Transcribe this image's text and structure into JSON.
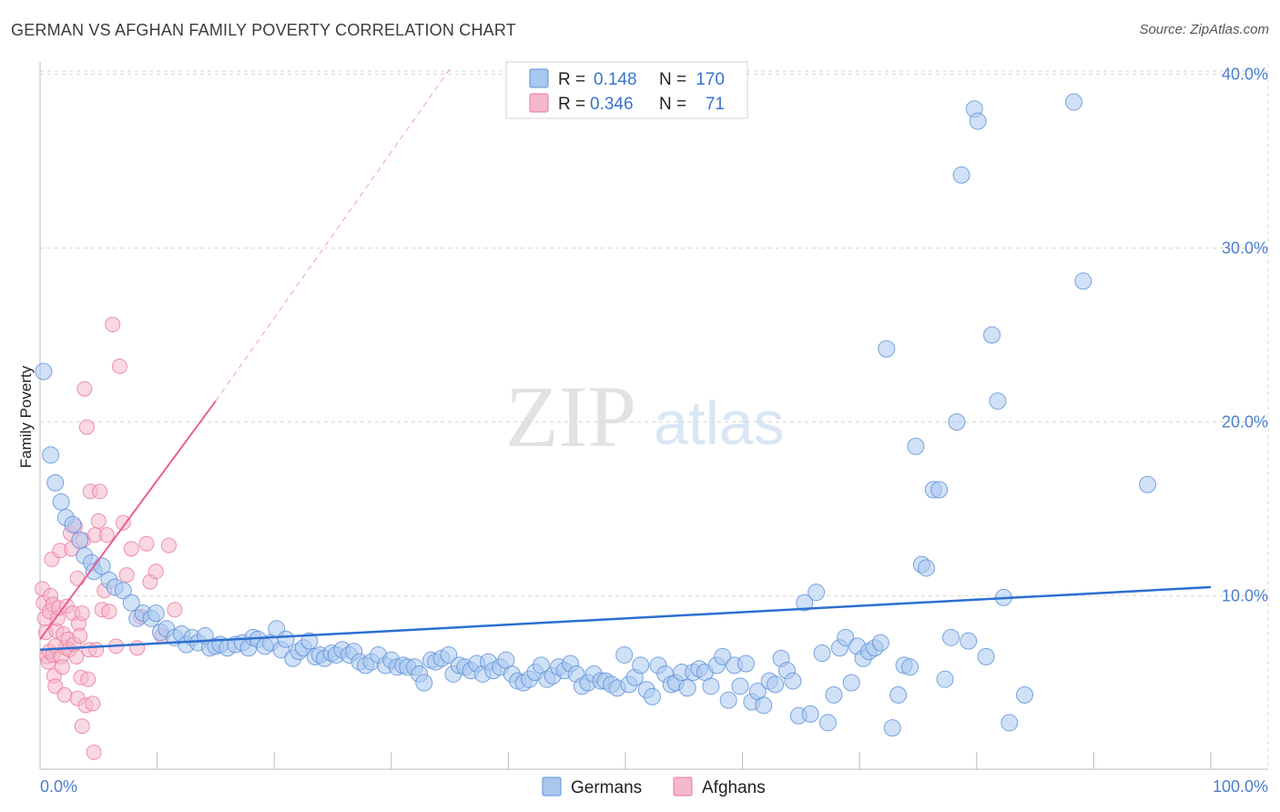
{
  "title": "GERMAN VS AFGHAN FAMILY POVERTY CORRELATION CHART",
  "source": "Source: ZipAtlas.com",
  "watermark": {
    "zip": "ZIP",
    "atlas": "atlas"
  },
  "colors": {
    "german_fill": "#a9c8f0",
    "german_stroke": "#5b8fd6",
    "german_line": "#2b6fd0",
    "afghan_fill": "#f6b8cb",
    "afghan_stroke": "#e8789c",
    "afghan_line": "#e8608e",
    "grid": "#d8d8d8",
    "tick_label": "#4a7fd0"
  },
  "legend": {
    "rows": [
      {
        "r_label": "R =",
        "r_value": "0.148",
        "n_label": "N =",
        "n_value": "170",
        "series": "german"
      },
      {
        "r_label": "R =",
        "r_value": "0.346",
        "n_label": "N =",
        "n_value": "71",
        "series": "afghan"
      }
    ]
  },
  "chart_data": {
    "type": "scatter",
    "title": "GERMAN VS AFGHAN FAMILY POVERTY CORRELATION CHART",
    "xlabel": "",
    "ylabel": "Family Poverty",
    "xlim": [
      0,
      100
    ],
    "ylim": [
      0,
      42
    ],
    "x_tick_labels": [
      "0.0%",
      "100.0%"
    ],
    "y_ticks": [
      10,
      20,
      30,
      40
    ],
    "y_tick_labels": [
      "10.0%",
      "20.0%",
      "30.0%",
      "40.0%"
    ],
    "grid": true,
    "legend_placement": "top-center",
    "series": [
      {
        "name": "Germans",
        "key": "german",
        "trend": {
          "x0": 0,
          "y0": 6.9,
          "x1": 100,
          "y1": 10.5
        },
        "points": [
          [
            0.3,
            22.9
          ],
          [
            0.9,
            18.1
          ],
          [
            1.3,
            16.5
          ],
          [
            1.8,
            15.4
          ],
          [
            2.2,
            14.5
          ],
          [
            2.8,
            14.1
          ],
          [
            3.4,
            13.2
          ],
          [
            3.8,
            12.3
          ],
          [
            4.4,
            11.9
          ],
          [
            4.6,
            11.4
          ],
          [
            5.3,
            11.7
          ],
          [
            5.9,
            10.9
          ],
          [
            6.4,
            10.5
          ],
          [
            7.1,
            10.3
          ],
          [
            7.8,
            9.6
          ],
          [
            8.3,
            8.7
          ],
          [
            8.8,
            9.0
          ],
          [
            9.5,
            8.7
          ],
          [
            9.9,
            9.0
          ],
          [
            10.3,
            7.9
          ],
          [
            10.8,
            8.1
          ],
          [
            11.5,
            7.6
          ],
          [
            12.1,
            7.8
          ],
          [
            12.5,
            7.2
          ],
          [
            13.0,
            7.6
          ],
          [
            13.5,
            7.3
          ],
          [
            14.1,
            7.7
          ],
          [
            14.5,
            7.0
          ],
          [
            15.0,
            7.1
          ],
          [
            15.4,
            7.2
          ],
          [
            16.0,
            7.0
          ],
          [
            16.7,
            7.2
          ],
          [
            17.3,
            7.3
          ],
          [
            17.8,
            7.0
          ],
          [
            18.2,
            7.6
          ],
          [
            18.6,
            7.5
          ],
          [
            19.2,
            7.1
          ],
          [
            19.7,
            7.3
          ],
          [
            20.2,
            8.1
          ],
          [
            20.6,
            6.9
          ],
          [
            21.0,
            7.5
          ],
          [
            21.6,
            6.4
          ],
          [
            22.1,
            6.8
          ],
          [
            22.5,
            7.0
          ],
          [
            23.0,
            7.4
          ],
          [
            23.5,
            6.5
          ],
          [
            23.9,
            6.6
          ],
          [
            24.3,
            6.4
          ],
          [
            24.9,
            6.7
          ],
          [
            25.3,
            6.6
          ],
          [
            25.8,
            6.9
          ],
          [
            26.4,
            6.6
          ],
          [
            26.8,
            6.8
          ],
          [
            27.3,
            6.2
          ],
          [
            27.8,
            6.0
          ],
          [
            28.3,
            6.2
          ],
          [
            28.9,
            6.6
          ],
          [
            29.5,
            6.0
          ],
          [
            30.0,
            6.3
          ],
          [
            30.5,
            5.9
          ],
          [
            31.0,
            6.0
          ],
          [
            31.4,
            5.9
          ],
          [
            32.0,
            5.9
          ],
          [
            32.4,
            5.5
          ],
          [
            32.8,
            5.0
          ],
          [
            33.4,
            6.3
          ],
          [
            33.8,
            6.2
          ],
          [
            34.3,
            6.4
          ],
          [
            34.9,
            6.6
          ],
          [
            35.3,
            5.5
          ],
          [
            35.8,
            6.0
          ],
          [
            36.3,
            5.9
          ],
          [
            36.8,
            5.7
          ],
          [
            37.3,
            6.1
          ],
          [
            37.8,
            5.5
          ],
          [
            38.3,
            6.2
          ],
          [
            38.7,
            5.7
          ],
          [
            39.3,
            5.9
          ],
          [
            39.8,
            6.3
          ],
          [
            40.3,
            5.5
          ],
          [
            40.8,
            5.1
          ],
          [
            41.3,
            5.0
          ],
          [
            41.8,
            5.2
          ],
          [
            42.3,
            5.6
          ],
          [
            42.8,
            6.0
          ],
          [
            43.3,
            5.2
          ],
          [
            43.8,
            5.4
          ],
          [
            44.3,
            5.9
          ],
          [
            44.8,
            5.7
          ],
          [
            45.3,
            6.1
          ],
          [
            45.8,
            5.5
          ],
          [
            46.3,
            4.8
          ],
          [
            46.8,
            5.0
          ],
          [
            47.3,
            5.5
          ],
          [
            47.9,
            5.1
          ],
          [
            48.3,
            5.1
          ],
          [
            48.8,
            4.9
          ],
          [
            49.3,
            4.7
          ],
          [
            49.9,
            6.6
          ],
          [
            50.3,
            4.9
          ],
          [
            50.8,
            5.3
          ],
          [
            51.3,
            6.0
          ],
          [
            51.8,
            4.6
          ],
          [
            52.3,
            4.2
          ],
          [
            52.8,
            6.0
          ],
          [
            53.4,
            5.5
          ],
          [
            53.9,
            4.9
          ],
          [
            54.3,
            5.0
          ],
          [
            54.8,
            5.6
          ],
          [
            55.3,
            4.7
          ],
          [
            55.8,
            5.6
          ],
          [
            56.3,
            5.8
          ],
          [
            56.8,
            5.6
          ],
          [
            57.3,
            4.8
          ],
          [
            57.8,
            6.0
          ],
          [
            58.3,
            6.5
          ],
          [
            58.8,
            4.0
          ],
          [
            59.3,
            6.0
          ],
          [
            59.8,
            4.8
          ],
          [
            60.3,
            6.1
          ],
          [
            60.8,
            3.9
          ],
          [
            61.3,
            4.5
          ],
          [
            61.8,
            3.7
          ],
          [
            62.3,
            5.1
          ],
          [
            62.8,
            4.9
          ],
          [
            63.3,
            6.4
          ],
          [
            63.8,
            5.7
          ],
          [
            64.3,
            5.1
          ],
          [
            64.8,
            3.1
          ],
          [
            65.3,
            9.6
          ],
          [
            65.8,
            3.2
          ],
          [
            66.3,
            10.2
          ],
          [
            66.8,
            6.7
          ],
          [
            67.3,
            2.7
          ],
          [
            67.8,
            4.3
          ],
          [
            68.3,
            7.0
          ],
          [
            68.8,
            7.6
          ],
          [
            69.3,
            5.0
          ],
          [
            69.8,
            7.1
          ],
          [
            70.3,
            6.4
          ],
          [
            70.8,
            6.8
          ],
          [
            71.3,
            7.0
          ],
          [
            71.8,
            7.3
          ],
          [
            72.3,
            24.2
          ],
          [
            72.8,
            2.4
          ],
          [
            73.3,
            4.3
          ],
          [
            73.8,
            6.0
          ],
          [
            74.3,
            5.9
          ],
          [
            74.8,
            18.6
          ],
          [
            75.3,
            11.8
          ],
          [
            75.7,
            11.6
          ],
          [
            76.3,
            16.1
          ],
          [
            76.8,
            16.1
          ],
          [
            77.3,
            5.2
          ],
          [
            77.8,
            7.6
          ],
          [
            78.3,
            20.0
          ],
          [
            78.7,
            34.2
          ],
          [
            79.3,
            7.4
          ],
          [
            79.8,
            38.0
          ],
          [
            80.1,
            37.3
          ],
          [
            80.8,
            6.5
          ],
          [
            81.3,
            25.0
          ],
          [
            81.8,
            21.2
          ],
          [
            82.3,
            9.9
          ],
          [
            82.8,
            2.7
          ],
          [
            84.1,
            4.3
          ],
          [
            88.3,
            38.4
          ],
          [
            89.1,
            28.1
          ],
          [
            94.6,
            16.4
          ]
        ]
      },
      {
        "name": "Afghans",
        "key": "afghan",
        "trend": {
          "x0": 0,
          "y0": 7.5,
          "x1": 15,
          "y1": 21.2
        },
        "trend_dashed": {
          "x0": 15,
          "y0": 21.2,
          "x1": 35,
          "y1": 40.3
        },
        "points": [
          [
            0.2,
            10.4
          ],
          [
            0.3,
            9.6
          ],
          [
            0.4,
            8.7
          ],
          [
            0.5,
            7.9
          ],
          [
            0.6,
            6.5
          ],
          [
            0.7,
            6.2
          ],
          [
            0.8,
            6.8
          ],
          [
            0.8,
            9.1
          ],
          [
            0.9,
            10.0
          ],
          [
            1.0,
            12.1
          ],
          [
            1.1,
            9.5
          ],
          [
            1.1,
            6.6
          ],
          [
            1.2,
            5.4
          ],
          [
            1.3,
            4.8
          ],
          [
            1.3,
            7.1
          ],
          [
            1.4,
            8.0
          ],
          [
            1.5,
            8.7
          ],
          [
            1.6,
            9.3
          ],
          [
            1.7,
            12.6
          ],
          [
            1.8,
            6.5
          ],
          [
            1.9,
            5.9
          ],
          [
            2.0,
            7.8
          ],
          [
            2.1,
            4.3
          ],
          [
            2.2,
            7.0
          ],
          [
            2.3,
            9.4
          ],
          [
            2.4,
            7.5
          ],
          [
            2.5,
            6.9
          ],
          [
            2.6,
            13.6
          ],
          [
            2.7,
            12.7
          ],
          [
            2.8,
            9.0
          ],
          [
            2.9,
            7.2
          ],
          [
            3.0,
            14.0
          ],
          [
            3.1,
            6.5
          ],
          [
            3.2,
            4.1
          ],
          [
            3.2,
            11.0
          ],
          [
            3.3,
            8.4
          ],
          [
            3.4,
            7.7
          ],
          [
            3.5,
            5.3
          ],
          [
            3.6,
            9.0
          ],
          [
            3.6,
            2.5
          ],
          [
            3.7,
            13.2
          ],
          [
            3.8,
            21.9
          ],
          [
            3.9,
            3.7
          ],
          [
            4.0,
            19.7
          ],
          [
            4.1,
            5.2
          ],
          [
            4.2,
            6.9
          ],
          [
            4.3,
            16.0
          ],
          [
            4.5,
            3.8
          ],
          [
            4.6,
            1.0
          ],
          [
            4.7,
            13.5
          ],
          [
            4.8,
            6.9
          ],
          [
            5.0,
            14.3
          ],
          [
            5.1,
            16.0
          ],
          [
            5.3,
            9.2
          ],
          [
            5.5,
            10.3
          ],
          [
            5.7,
            13.5
          ],
          [
            5.9,
            9.1
          ],
          [
            6.2,
            25.6
          ],
          [
            6.5,
            7.1
          ],
          [
            6.8,
            23.2
          ],
          [
            7.1,
            14.2
          ],
          [
            7.4,
            11.2
          ],
          [
            7.8,
            12.7
          ],
          [
            8.3,
            7.0
          ],
          [
            8.6,
            8.8
          ],
          [
            9.1,
            13.0
          ],
          [
            9.4,
            10.8
          ],
          [
            9.9,
            11.4
          ],
          [
            10.4,
            7.7
          ],
          [
            11.0,
            12.9
          ],
          [
            11.5,
            9.2
          ]
        ]
      }
    ]
  },
  "bottom_legend": {
    "items": [
      {
        "label": "Germans",
        "series": "german"
      },
      {
        "label": "Afghans",
        "series": "afghan"
      }
    ]
  }
}
